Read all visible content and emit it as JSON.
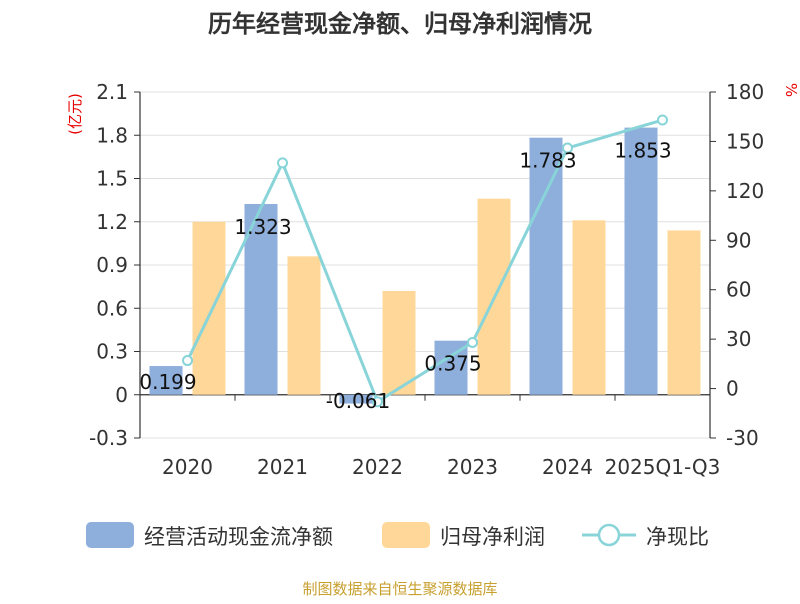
{
  "chart_data": {
    "type": "bar+line",
    "title": "历年经营现金净额、归母净利润情况",
    "categories": [
      "2020",
      "2021",
      "2022",
      "2023",
      "2024",
      "2025Q1-Q3"
    ],
    "series": [
      {
        "name": "经营活动现金流净额",
        "type": "bar",
        "axis": "left",
        "color": "#8eaedb",
        "values": [
          0.199,
          1.323,
          -0.061,
          0.375,
          1.783,
          1.853
        ],
        "labels": [
          "0.199",
          "1.323",
          "-0.061",
          "0.375",
          "1.783",
          "1.853"
        ]
      },
      {
        "name": "归母净利润",
        "type": "bar",
        "axis": "left",
        "color": "#ffd899",
        "values": [
          1.2,
          0.96,
          0.72,
          1.36,
          1.21,
          1.14
        ]
      },
      {
        "name": "净现比",
        "type": "line",
        "axis": "right",
        "color": "#88d4d8",
        "values": [
          17,
          137,
          -8,
          28,
          146,
          163
        ]
      }
    ],
    "left_axis": {
      "label": "(亿元)",
      "range": [
        -0.3,
        2.1
      ],
      "ticks": [
        "-0.3",
        "0",
        "0.3",
        "0.6",
        "0.9",
        "1.2",
        "1.5",
        "1.8",
        "2.1"
      ],
      "tick_values": [
        -0.3,
        0,
        0.3,
        0.6,
        0.9,
        1.2,
        1.5,
        1.8,
        2.1
      ]
    },
    "right_axis": {
      "label": "%",
      "range": [
        -30,
        180
      ],
      "ticks": [
        "-30",
        "0",
        "30",
        "60",
        "90",
        "120",
        "150",
        "180"
      ],
      "tick_values": [
        -30,
        0,
        30,
        60,
        90,
        120,
        150,
        180
      ]
    },
    "legend": {
      "position": "bottom"
    },
    "grid": true
  },
  "source_note": "制图数据来自恒生聚源数据库",
  "colors": {
    "axis": "#333333",
    "grid": "#e0e0e0",
    "axis_label_red": "#e60000",
    "source": "#c8a030"
  }
}
